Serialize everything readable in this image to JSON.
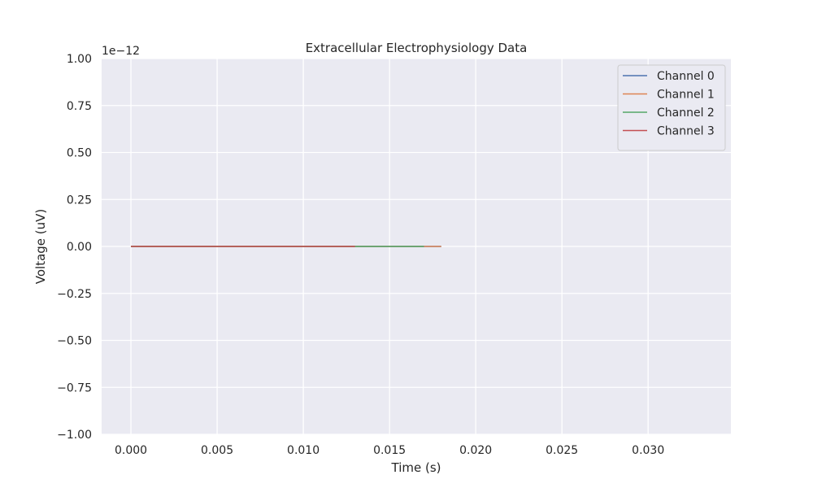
{
  "chart_data": {
    "type": "line",
    "title": "Extracellular Electrophysiology Data",
    "xlabel": "Time (s)",
    "ylabel": "Voltage (uV)",
    "y_offset_text": "1e−12",
    "xlim": [
      -0.0017,
      0.0348
    ],
    "ylim": [
      -1.0,
      1.0
    ],
    "x_ticks": [
      0.0,
      0.005,
      0.01,
      0.015,
      0.02,
      0.025,
      0.03
    ],
    "x_tick_labels": [
      "0.000",
      "0.005",
      "0.010",
      "0.015",
      "0.020",
      "0.025",
      "0.030"
    ],
    "y_ticks": [
      -1.0,
      -0.75,
      -0.5,
      -0.25,
      0.0,
      0.25,
      0.5,
      0.75,
      1.0
    ],
    "y_tick_labels": [
      "−1.00",
      "−0.75",
      "−0.50",
      "−0.25",
      "0.00",
      "0.25",
      "0.50",
      "0.75",
      "1.00"
    ],
    "grid": true,
    "legend_position": "top-right",
    "series": [
      {
        "name": "Channel 0",
        "color": "#4c72b0",
        "x": [
          0.0,
          0.018
        ],
        "values": [
          0.0,
          0.0
        ]
      },
      {
        "name": "Channel 1",
        "color": "#dd8452",
        "x": [
          0.0,
          0.018
        ],
        "values": [
          0.0,
          0.0
        ]
      },
      {
        "name": "Channel 2",
        "color": "#55a868",
        "x": [
          0.0,
          0.017
        ],
        "values": [
          0.0,
          0.0
        ]
      },
      {
        "name": "Channel 3",
        "color": "#c44e52",
        "x": [
          0.0,
          0.013
        ],
        "values": [
          0.0,
          0.0
        ]
      }
    ]
  }
}
